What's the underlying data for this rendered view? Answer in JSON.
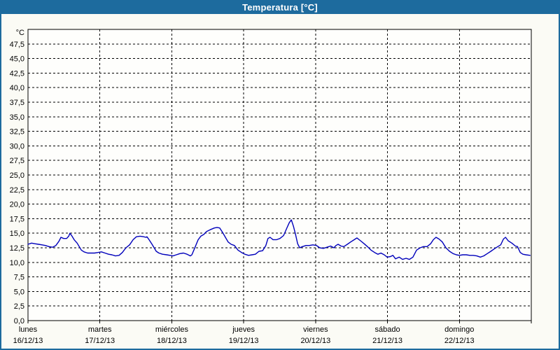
{
  "window": {
    "title": "Temperatura [°C]"
  },
  "colors": {
    "titlebar_bg": "#1d6b9e",
    "titlebar_text": "#ffffff",
    "window_border": "#1d6b9e",
    "window_bg": "#fbfbf5",
    "plot_bg": "#fefefc",
    "plot_border": "#000000",
    "grid": "#000000",
    "line": "#0000bb"
  },
  "chart_data": {
    "type": "line",
    "title": "Temperatura [°C]",
    "xlabel": "",
    "ylabel": "°C",
    "ylim": [
      0,
      50
    ],
    "ytick_step": 2.5,
    "ytick_labels": [
      "47,5",
      "45,0",
      "42,5",
      "40,0",
      "37,5",
      "35,0",
      "32,5",
      "30,0",
      "27,5",
      "25,0",
      "22,5",
      "20,0",
      "17,5",
      "15,0",
      "12,5",
      "10,0",
      "7,5",
      "5,0",
      "2,5",
      "0,0"
    ],
    "xlim_hours": [
      0,
      168
    ],
    "hours_per_day": 24,
    "grid": "dashed",
    "legend_position": "none",
    "x_categories": [
      {
        "day": "lunes",
        "date": "16/12/13"
      },
      {
        "day": "martes",
        "date": "17/12/13"
      },
      {
        "day": "miércoles",
        "date": "18/12/13"
      },
      {
        "day": "jueves",
        "date": "19/12/13"
      },
      {
        "day": "viernes",
        "date": "20/12/13"
      },
      {
        "day": "sábado",
        "date": "21/12/13"
      },
      {
        "day": "domingo",
        "date": "22/12/13"
      }
    ],
    "series": [
      {
        "name": "Temperatura",
        "color": "#0000bb",
        "points": [
          [
            0,
            13.1
          ],
          [
            1.2,
            13.3
          ],
          [
            2.3,
            13.2
          ],
          [
            3.5,
            13.1
          ],
          [
            4.7,
            13.0
          ],
          [
            5.8,
            12.9
          ],
          [
            7,
            12.7
          ],
          [
            8.2,
            12.6
          ],
          [
            9.3,
            12.9
          ],
          [
            10.3,
            13.6
          ],
          [
            11,
            14.3
          ],
          [
            11.9,
            14.1
          ],
          [
            12.9,
            14.1
          ],
          [
            13.6,
            14.5
          ],
          [
            14,
            15.0
          ],
          [
            14.7,
            14.5
          ],
          [
            15.4,
            13.9
          ],
          [
            16.4,
            13.3
          ],
          [
            17.1,
            12.7
          ],
          [
            17.8,
            12.1
          ],
          [
            18.7,
            11.8
          ],
          [
            19.9,
            11.6
          ],
          [
            21,
            11.6
          ],
          [
            22.2,
            11.6
          ],
          [
            23.4,
            11.7
          ],
          [
            24.5,
            11.8
          ],
          [
            25.7,
            11.6
          ],
          [
            26.9,
            11.4
          ],
          [
            28,
            11.3
          ],
          [
            29.2,
            11.1
          ],
          [
            30.4,
            11.2
          ],
          [
            31.5,
            11.7
          ],
          [
            32.7,
            12.5
          ],
          [
            33.9,
            13.0
          ],
          [
            35.1,
            13.9
          ],
          [
            36.2,
            14.4
          ],
          [
            37.4,
            14.5
          ],
          [
            38.6,
            14.4
          ],
          [
            39.3,
            14.3
          ],
          [
            39.7,
            14.4
          ],
          [
            40.4,
            13.9
          ],
          [
            41.4,
            13.1
          ],
          [
            42.1,
            12.5
          ],
          [
            42.8,
            11.9
          ],
          [
            43.7,
            11.6
          ],
          [
            44.9,
            11.4
          ],
          [
            46.3,
            11.3
          ],
          [
            47.4,
            11.2
          ],
          [
            48.4,
            11.1
          ],
          [
            49.5,
            11.3
          ],
          [
            50.7,
            11.5
          ],
          [
            51.9,
            11.6
          ],
          [
            53.1,
            11.4
          ],
          [
            54.2,
            11.1
          ],
          [
            54.7,
            11.3
          ],
          [
            55.6,
            12.4
          ],
          [
            56.8,
            13.9
          ],
          [
            57.7,
            14.5
          ],
          [
            58.7,
            14.8
          ],
          [
            59.6,
            15.3
          ],
          [
            60.8,
            15.6
          ],
          [
            62.2,
            15.9
          ],
          [
            63.1,
            16.0
          ],
          [
            64,
            15.9
          ],
          [
            65,
            15.1
          ],
          [
            65.9,
            14.3
          ],
          [
            66.8,
            13.5
          ],
          [
            67.8,
            13.1
          ],
          [
            68.9,
            12.9
          ],
          [
            70.1,
            12.1
          ],
          [
            71.3,
            11.7
          ],
          [
            72.4,
            11.4
          ],
          [
            73.6,
            11.2
          ],
          [
            74.8,
            11.3
          ],
          [
            75.9,
            11.4
          ],
          [
            77.1,
            11.9
          ],
          [
            78.3,
            12.0
          ],
          [
            79.4,
            12.9
          ],
          [
            80.1,
            14.1
          ],
          [
            80.8,
            14.3
          ],
          [
            81.8,
            13.9
          ],
          [
            83,
            13.9
          ],
          [
            84.1,
            14.1
          ],
          [
            85.3,
            14.6
          ],
          [
            86.5,
            16.0
          ],
          [
            87.2,
            16.8
          ],
          [
            87.9,
            17.3
          ],
          [
            88.6,
            16.2
          ],
          [
            89.3,
            14.8
          ],
          [
            90,
            13.2
          ],
          [
            90.7,
            12.5
          ],
          [
            91.6,
            12.7
          ],
          [
            92.8,
            12.9
          ],
          [
            93.9,
            12.9
          ],
          [
            95.1,
            13.0
          ],
          [
            96.3,
            12.9
          ],
          [
            97.4,
            12.5
          ],
          [
            98.6,
            12.4
          ],
          [
            99.8,
            12.6
          ],
          [
            101,
            12.8
          ],
          [
            102.1,
            12.5
          ],
          [
            102.8,
            12.9
          ],
          [
            103.5,
            13.1
          ],
          [
            104.5,
            12.8
          ],
          [
            105.4,
            12.7
          ],
          [
            106.6,
            13.1
          ],
          [
            107.7,
            13.5
          ],
          [
            108.9,
            13.9
          ],
          [
            109.8,
            14.2
          ],
          [
            111,
            13.7
          ],
          [
            112.2,
            13.2
          ],
          [
            113.3,
            12.7
          ],
          [
            114.5,
            12.1
          ],
          [
            115.7,
            11.7
          ],
          [
            116.8,
            11.4
          ],
          [
            117.8,
            11.6
          ],
          [
            118.9,
            11.3
          ],
          [
            119.9,
            10.9
          ],
          [
            121,
            11.0
          ],
          [
            121.8,
            11.2
          ],
          [
            122.7,
            10.6
          ],
          [
            123.9,
            10.9
          ],
          [
            125,
            10.5
          ],
          [
            126.2,
            10.7
          ],
          [
            127.3,
            10.5
          ],
          [
            128.5,
            10.9
          ],
          [
            129.7,
            12.1
          ],
          [
            130.9,
            12.5
          ],
          [
            132,
            12.7
          ],
          [
            133.2,
            12.7
          ],
          [
            134.4,
            13.2
          ],
          [
            135.3,
            13.9
          ],
          [
            136.2,
            14.3
          ],
          [
            137.2,
            14.0
          ],
          [
            138.3,
            13.5
          ],
          [
            139.5,
            12.5
          ],
          [
            140.7,
            11.9
          ],
          [
            141.9,
            11.5
          ],
          [
            143,
            11.3
          ],
          [
            144,
            11.2
          ],
          [
            145.1,
            11.3
          ],
          [
            146.3,
            11.3
          ],
          [
            147.5,
            11.2
          ],
          [
            148.6,
            11.2
          ],
          [
            149.8,
            11.1
          ],
          [
            151,
            10.9
          ],
          [
            152.1,
            11.1
          ],
          [
            153.3,
            11.5
          ],
          [
            154.5,
            11.9
          ],
          [
            155.6,
            12.3
          ],
          [
            156.8,
            12.7
          ],
          [
            157.8,
            13.0
          ],
          [
            158.7,
            14.0
          ],
          [
            159.4,
            14.3
          ],
          [
            160.3,
            13.7
          ],
          [
            161.5,
            13.3
          ],
          [
            162.7,
            12.8
          ],
          [
            163.4,
            12.7
          ],
          [
            164.3,
            11.7
          ],
          [
            165.2,
            11.4
          ],
          [
            166.2,
            11.3
          ],
          [
            167.6,
            11.2
          ]
        ]
      }
    ]
  }
}
